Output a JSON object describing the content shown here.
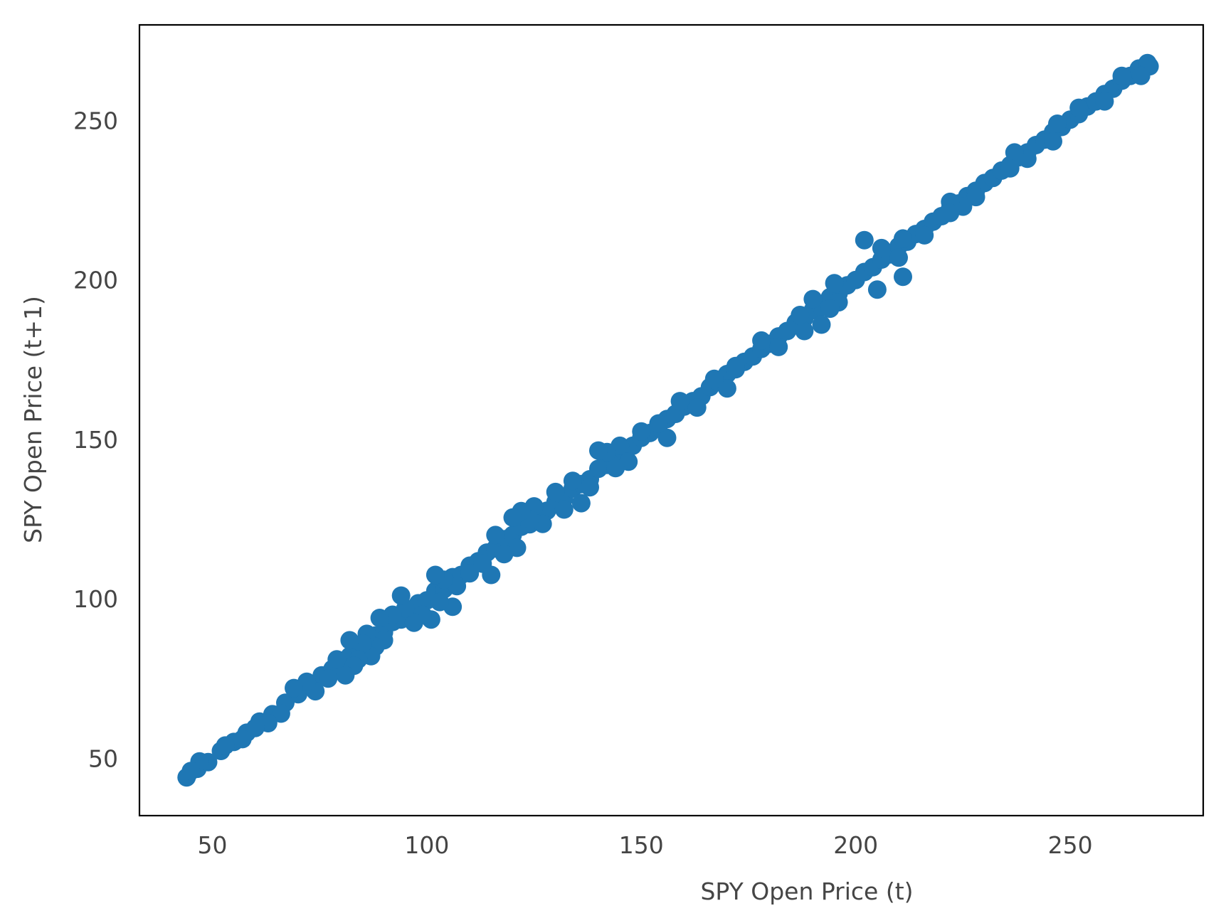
{
  "chart_data": {
    "type": "scatter",
    "title": "",
    "xlabel": "SPY Open Price (t)",
    "ylabel": "SPY Open Price (t+1)",
    "xlim": [
      33,
      281
    ],
    "ylim": [
      32,
      280
    ],
    "xticks": [
      50,
      100,
      150,
      200,
      250
    ],
    "yticks": [
      50,
      100,
      150,
      200,
      250
    ],
    "grid": false,
    "legend": "none",
    "color": "#1f77b4",
    "series": [
      {
        "points": [
          [
            44.0,
            44.0
          ],
          [
            46.5,
            46.7
          ],
          [
            49.0,
            48.8
          ],
          [
            52.0,
            52.3
          ],
          [
            55.0,
            55.1
          ],
          [
            58.0,
            58.0
          ],
          [
            61.0,
            61.5
          ],
          [
            64.0,
            63.8
          ],
          [
            67.0,
            67.4
          ],
          [
            70.0,
            70.1
          ],
          [
            73.0,
            72.6
          ],
          [
            75.5,
            76.0
          ],
          [
            78.0,
            78.0
          ],
          [
            80.0,
            80.6
          ],
          [
            82.0,
            82.0
          ],
          [
            84.0,
            85.0
          ],
          [
            86.0,
            85.8
          ],
          [
            88.0,
            88.5
          ],
          [
            90.0,
            89.5
          ],
          [
            92.0,
            92.7
          ],
          [
            94.0,
            93.5
          ],
          [
            96.0,
            96.0
          ],
          [
            98.0,
            98.6
          ],
          [
            100.0,
            99.5
          ],
          [
            102.0,
            102.5
          ],
          [
            104.0,
            103.0
          ],
          [
            106.0,
            106.8
          ],
          [
            108.0,
            107.5
          ],
          [
            110.0,
            110.4
          ],
          [
            112.0,
            111.8
          ],
          [
            114.0,
            114.5
          ],
          [
            116.0,
            115.8
          ],
          [
            118.0,
            118.7
          ],
          [
            120.0,
            120.0
          ],
          [
            122.0,
            122.6
          ],
          [
            124.0,
            123.4
          ],
          [
            126.0,
            126.5
          ],
          [
            128.0,
            127.6
          ],
          [
            130.0,
            130.3
          ],
          [
            132.0,
            131.5
          ],
          [
            134.0,
            134.6
          ],
          [
            136.0,
            136.0
          ],
          [
            138.0,
            137.5
          ],
          [
            140.0,
            140.8
          ],
          [
            142.0,
            142.0
          ],
          [
            144.0,
            143.5
          ],
          [
            146.0,
            146.3
          ],
          [
            148.0,
            148.0
          ],
          [
            150.0,
            150.5
          ],
          [
            152.0,
            152.0
          ],
          [
            154.0,
            153.8
          ],
          [
            156.0,
            156.4
          ],
          [
            158.0,
            158.0
          ],
          [
            160.0,
            160.3
          ],
          [
            162.0,
            162.0
          ],
          [
            164.0,
            163.5
          ],
          [
            166.0,
            166.4
          ],
          [
            168.0,
            168.0
          ],
          [
            170.0,
            170.5
          ],
          [
            172.0,
            172.0
          ],
          [
            174.0,
            174.3
          ],
          [
            176.0,
            176.0
          ],
          [
            178.0,
            178.4
          ],
          [
            180.0,
            180.0
          ],
          [
            182.0,
            182.3
          ],
          [
            184.0,
            184.0
          ],
          [
            186.0,
            186.6
          ],
          [
            188.0,
            188.0
          ],
          [
            190.0,
            190.5
          ],
          [
            192.0,
            191.5
          ],
          [
            194.0,
            194.6
          ],
          [
            196.0,
            195.8
          ],
          [
            198.0,
            198.3
          ],
          [
            200.0,
            200.0
          ],
          [
            202.0,
            202.5
          ],
          [
            204.0,
            204.0
          ],
          [
            206.0,
            206.4
          ],
          [
            208.0,
            208.0
          ],
          [
            210.0,
            210.6
          ],
          [
            212.0,
            212.0
          ],
          [
            214.0,
            214.4
          ],
          [
            216.0,
            216.0
          ],
          [
            218.0,
            218.3
          ],
          [
            220.0,
            220.0
          ],
          [
            222.0,
            222.4
          ],
          [
            224.0,
            224.0
          ],
          [
            226.0,
            226.3
          ],
          [
            228.0,
            228.0
          ],
          [
            230.0,
            230.4
          ],
          [
            232.0,
            232.0
          ],
          [
            234.0,
            234.3
          ],
          [
            236.0,
            236.0
          ],
          [
            238.0,
            238.5
          ],
          [
            240.0,
            240.0
          ],
          [
            242.0,
            242.3
          ],
          [
            244.0,
            244.0
          ],
          [
            246.0,
            246.4
          ],
          [
            248.0,
            248.0
          ],
          [
            250.0,
            250.3
          ],
          [
            252.0,
            252.0
          ],
          [
            254.0,
            254.4
          ],
          [
            256.0,
            256.0
          ],
          [
            258.0,
            258.3
          ],
          [
            260.0,
            260.0
          ],
          [
            262.0,
            262.5
          ],
          [
            264.0,
            264.0
          ],
          [
            266.0,
            266.3
          ],
          [
            268.0,
            268.0
          ],
          [
            268.5,
            267.0
          ],
          [
            266.5,
            264.0
          ],
          [
            262.0,
            264.0
          ],
          [
            258.0,
            256.0
          ],
          [
            252.0,
            254.0
          ],
          [
            247.0,
            249.0
          ],
          [
            246.0,
            243.5
          ],
          [
            240.0,
            238.0
          ],
          [
            237.0,
            240.0
          ],
          [
            236.0,
            235.0
          ],
          [
            228.0,
            226.0
          ],
          [
            225.0,
            223.0
          ],
          [
            222.0,
            224.5
          ],
          [
            222.0,
            221.0
          ],
          [
            216.0,
            214.0
          ],
          [
            211.0,
            213.0
          ],
          [
            210.0,
            207.0
          ],
          [
            211.0,
            201.0
          ],
          [
            205.0,
            197.0
          ],
          [
            202.0,
            212.5
          ],
          [
            206.0,
            210.0
          ],
          [
            196.0,
            193.0
          ],
          [
            195.0,
            199.0
          ],
          [
            194.0,
            191.0
          ],
          [
            192.0,
            186.0
          ],
          [
            190.0,
            194.0
          ],
          [
            188.0,
            184.0
          ],
          [
            187.0,
            189.0
          ],
          [
            182.0,
            179.0
          ],
          [
            178.0,
            181.0
          ],
          [
            172.0,
            173.0
          ],
          [
            170.0,
            166.0
          ],
          [
            167.0,
            169.0
          ],
          [
            163.0,
            160.0
          ],
          [
            159.0,
            162.0
          ],
          [
            156.0,
            150.5
          ],
          [
            154.0,
            155.0
          ],
          [
            150.0,
            152.5
          ],
          [
            147.0,
            143.0
          ],
          [
            145.0,
            148.0
          ],
          [
            144.0,
            141.0
          ],
          [
            142.0,
            146.0
          ],
          [
            140.0,
            146.5
          ],
          [
            138.0,
            135.0
          ],
          [
            136.0,
            130.0
          ],
          [
            134.0,
            137.0
          ],
          [
            132.0,
            128.0
          ],
          [
            130.0,
            133.5
          ],
          [
            127.0,
            123.5
          ],
          [
            125.0,
            129.0
          ],
          [
            124.0,
            125.0
          ],
          [
            122.0,
            127.5
          ],
          [
            121.0,
            116.0
          ],
          [
            120.0,
            125.5
          ],
          [
            118.0,
            114.0
          ],
          [
            116.0,
            120.0
          ],
          [
            115.0,
            107.5
          ],
          [
            113.0,
            111.0
          ],
          [
            110.0,
            108.0
          ],
          [
            107.0,
            104.0
          ],
          [
            106.0,
            97.5
          ],
          [
            104.0,
            106.0
          ],
          [
            103.0,
            99.0
          ],
          [
            102.0,
            107.5
          ],
          [
            101.0,
            93.5
          ],
          [
            99.0,
            95.0
          ],
          [
            97.0,
            92.5
          ],
          [
            95.0,
            97.0
          ],
          [
            94.0,
            101.0
          ],
          [
            92.0,
            95.0
          ],
          [
            90.0,
            87.0
          ],
          [
            89.0,
            94.0
          ],
          [
            88.0,
            85.0
          ],
          [
            87.0,
            82.0
          ],
          [
            86.0,
            89.0
          ],
          [
            85.0,
            86.0
          ],
          [
            84.0,
            81.0
          ],
          [
            83.0,
            79.0
          ],
          [
            82.0,
            87.0
          ],
          [
            81.0,
            76.0
          ],
          [
            79.0,
            81.0
          ],
          [
            77.0,
            75.0
          ],
          [
            74.0,
            71.0
          ],
          [
            72.0,
            74.0
          ],
          [
            69.0,
            72.0
          ],
          [
            66.0,
            64.0
          ],
          [
            63.0,
            61.0
          ],
          [
            60.0,
            59.5
          ],
          [
            57.0,
            56.0
          ],
          [
            53.0,
            54.0
          ],
          [
            47.0,
            49.0
          ],
          [
            45.0,
            46.0
          ]
        ]
      }
    ]
  }
}
